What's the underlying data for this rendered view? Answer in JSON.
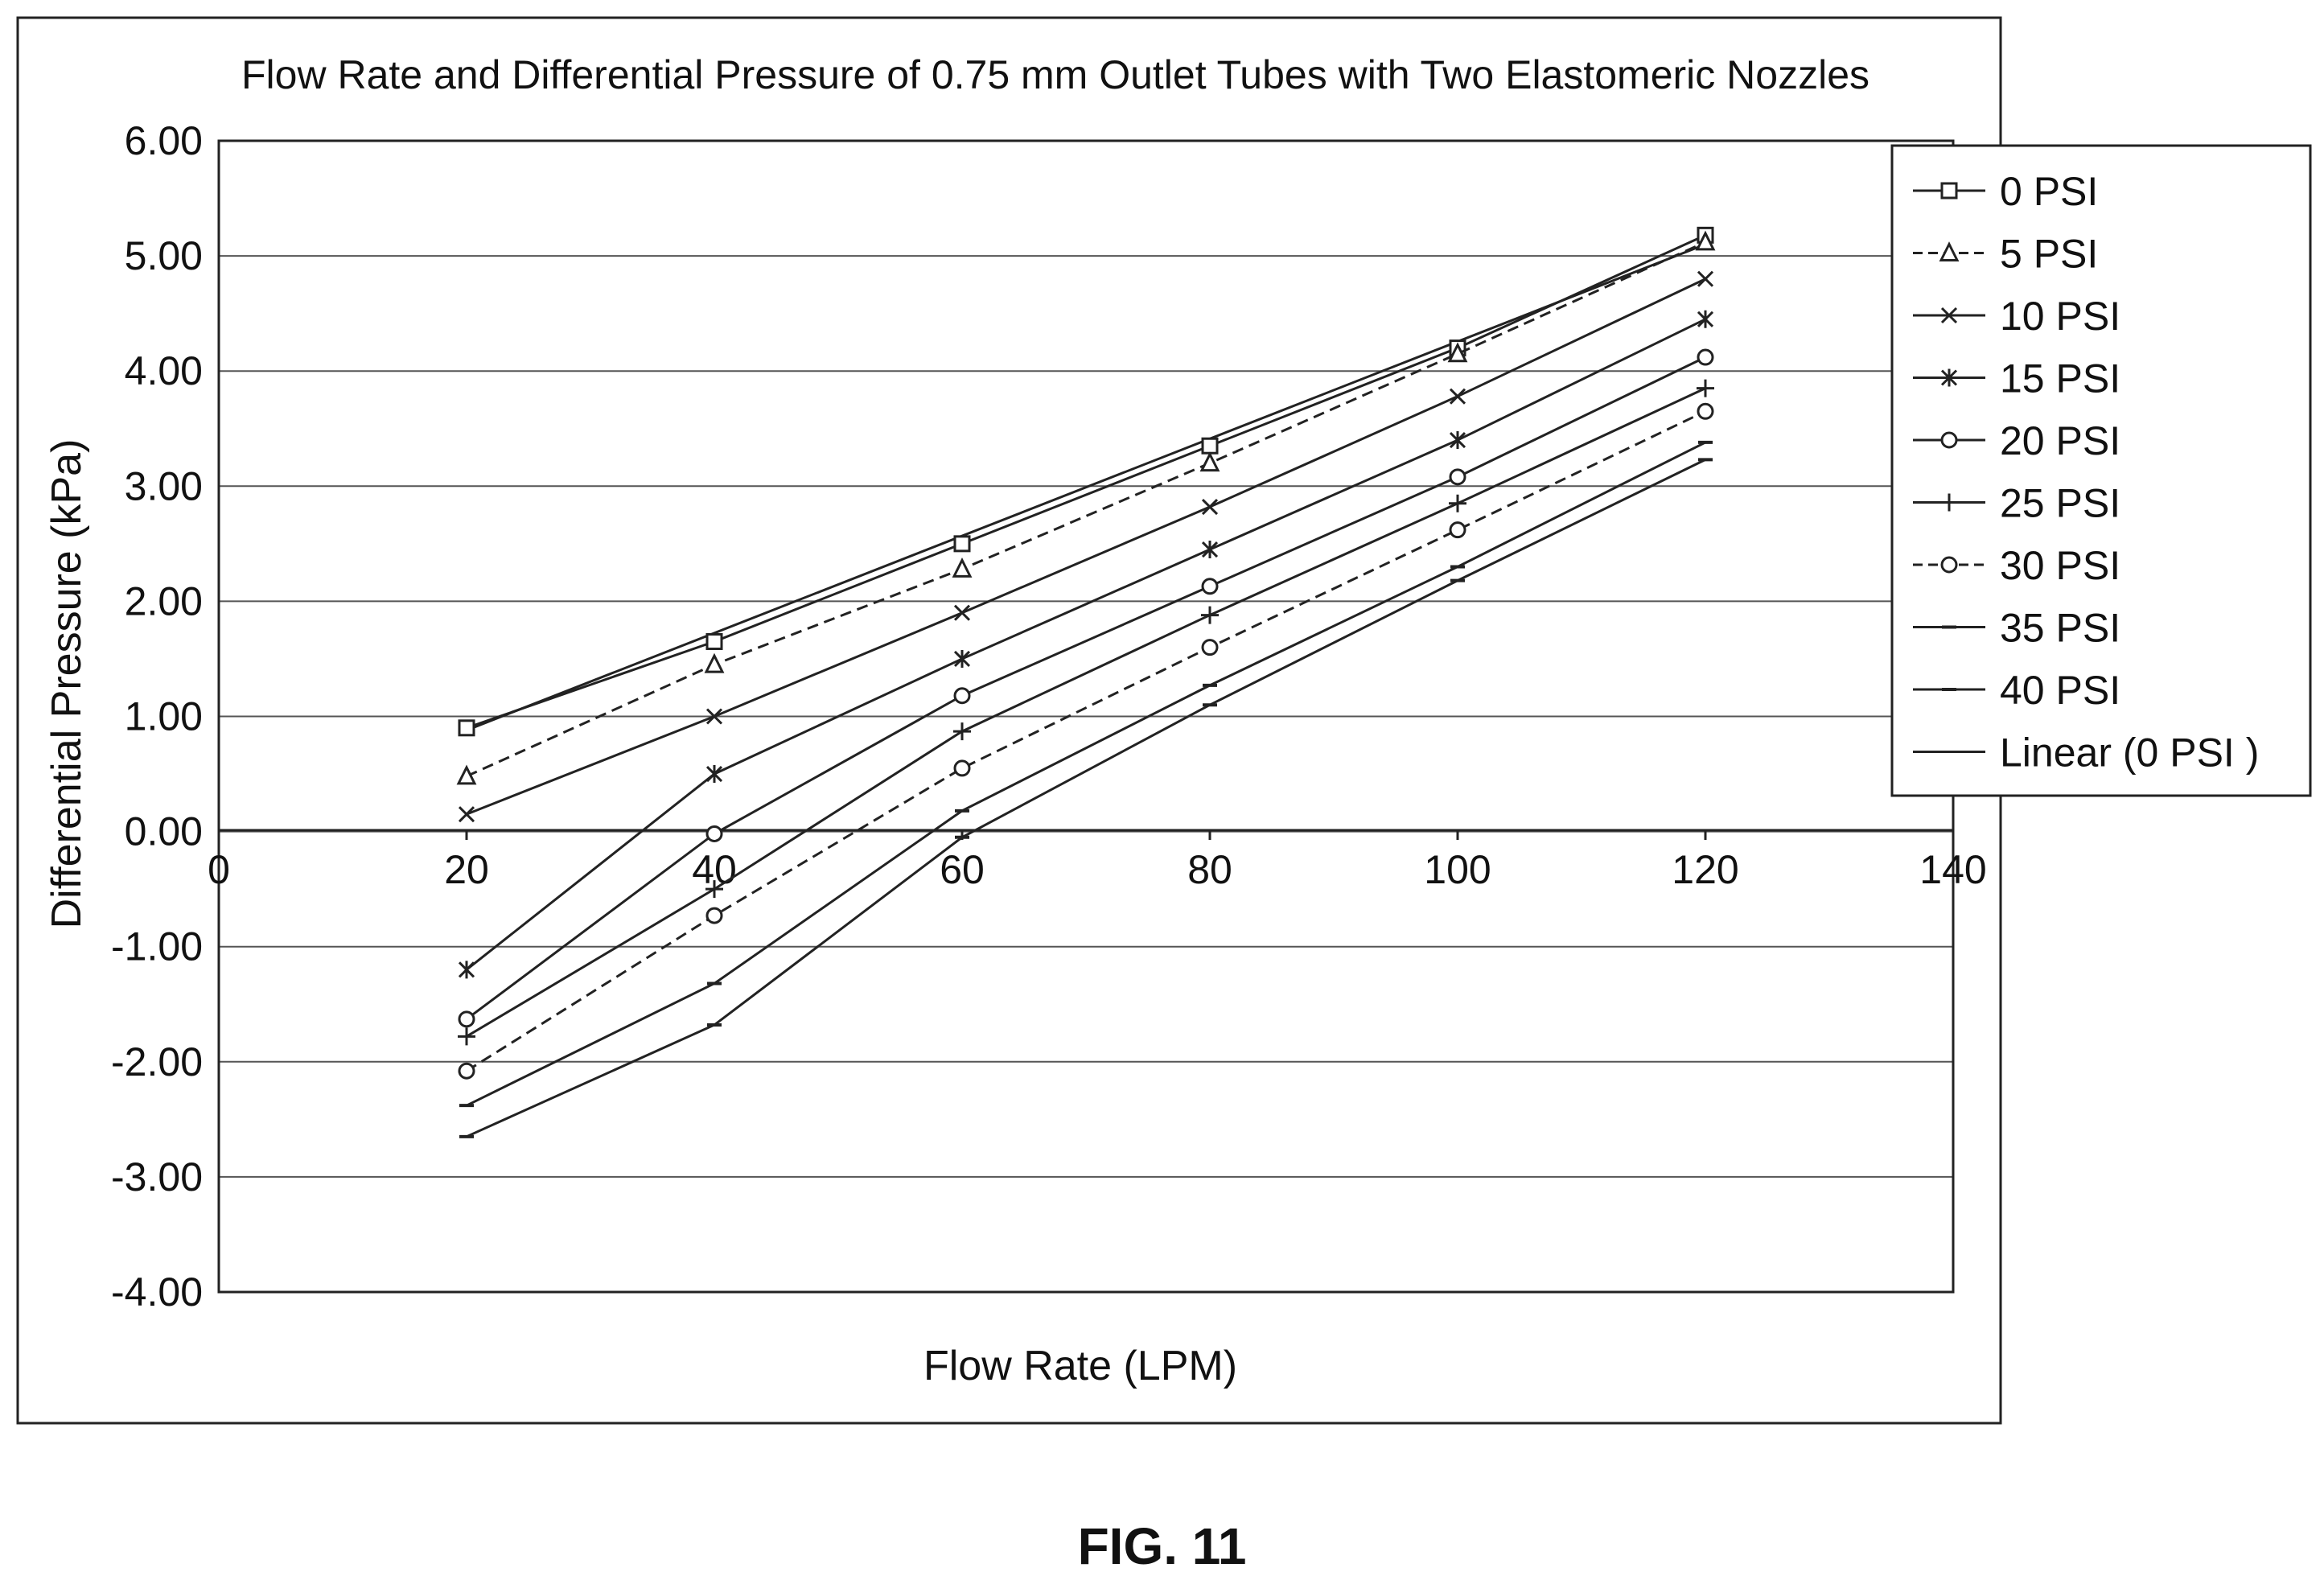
{
  "figure": {
    "caption": "FIG. 11"
  },
  "chart_data": {
    "type": "line",
    "title": "Flow Rate and Differential Pressure of 0.75 mm Outlet Tubes with Two Elastomeric Nozzles",
    "xlabel": "Flow Rate (LPM)",
    "ylabel": "Differential Pressure (kPa)",
    "xlim": [
      0,
      140
    ],
    "ylim": [
      -4,
      6
    ],
    "x_ticks": [
      "0",
      "20",
      "40",
      "60",
      "80",
      "100",
      "120",
      "140"
    ],
    "y_ticks": [
      "6.00",
      "5.00",
      "4.00",
      "3.00",
      "2.00",
      "1.00",
      "0.00",
      "-1.00",
      "-2.00",
      "-3.00",
      "-4.00"
    ],
    "grid": "horizontal",
    "legend_position": "right",
    "x": [
      20,
      40,
      60,
      80,
      100,
      120
    ],
    "series": [
      {
        "name": "0 PSI",
        "marker": "square",
        "dash": false,
        "values": [
          0.9,
          1.65,
          2.5,
          3.35,
          4.2,
          5.18
        ]
      },
      {
        "name": "5 PSI",
        "marker": "triangle",
        "dash": true,
        "values": [
          0.48,
          1.45,
          2.28,
          3.2,
          4.15,
          5.12
        ]
      },
      {
        "name": "10 PSI",
        "marker": "x",
        "dash": false,
        "values": [
          0.15,
          1.0,
          1.9,
          2.82,
          3.78,
          4.8
        ]
      },
      {
        "name": "15 PSI",
        "marker": "asterisk",
        "dash": false,
        "values": [
          -1.2,
          0.5,
          1.5,
          2.45,
          3.4,
          4.45
        ]
      },
      {
        "name": "20 PSI",
        "marker": "circle",
        "dash": false,
        "values": [
          -1.63,
          -0.02,
          1.18,
          2.13,
          3.08,
          4.12
        ]
      },
      {
        "name": "25 PSI",
        "marker": "plus",
        "dash": false,
        "values": [
          -1.78,
          -0.5,
          0.87,
          1.88,
          2.85,
          3.85
        ]
      },
      {
        "name": "30 PSI",
        "marker": "circle",
        "dash": true,
        "values": [
          -2.08,
          -0.73,
          0.55,
          1.6,
          2.62,
          3.65
        ]
      },
      {
        "name": "35 PSI",
        "marker": "dash",
        "dash": false,
        "values": [
          -2.38,
          -1.32,
          0.18,
          1.27,
          2.3,
          3.38
        ]
      },
      {
        "name": "40 PSI",
        "marker": "dash",
        "dash": false,
        "values": [
          -2.65,
          -1.68,
          -0.05,
          1.1,
          2.18,
          3.23
        ]
      }
    ],
    "trendline": {
      "name": "Linear (0 PSI )",
      "x": [
        20,
        120
      ],
      "values": [
        0.88,
        5.1
      ]
    }
  }
}
